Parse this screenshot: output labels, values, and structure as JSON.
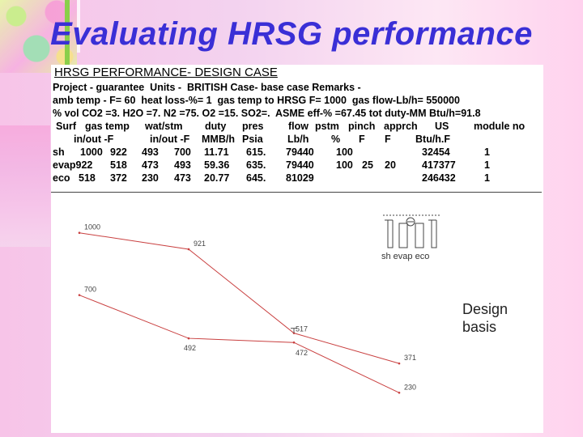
{
  "slide_title": "Evaluating HRSG performance",
  "table": {
    "heading": "HRSG PERFORMANCE- DESIGN CASE",
    "lines": [
      "Project - guarantee  Units -  BRITISH Case- base case Remarks -",
      "amb temp - F= 60  heat loss-%= 1  gas temp to HRSG F= 1000  gas flow-Lb/h= 550000",
      "% vol CO2 =3. H2O =7. N2 =75. O2 =15. SO2=.  ASME eff-% =67.45 tot duty-MM Btu/h=91.8"
    ],
    "header1": [
      "Surf",
      "gas temp",
      "wat/stm",
      "duty",
      "pres",
      "flow",
      "pstm",
      "pinch",
      "apprch",
      "US",
      "module no"
    ],
    "header2": [
      "in/out -F",
      "in/out -F",
      "MMB/h",
      "Psia",
      "Lb/h",
      "%",
      "F",
      "F",
      "Btu/h.F"
    ],
    "rows": [
      [
        "sh",
        "1000",
        "922",
        "493",
        "700",
        "11.71",
        "615.",
        "79440",
        "100",
        "",
        "",
        "32454",
        "1"
      ],
      [
        "evap922",
        "",
        "518",
        "473",
        "493",
        "59.36",
        "635.",
        "79440",
        "100",
        "25",
        "20",
        "417377",
        "1"
      ],
      [
        "eco",
        "518",
        "372",
        "230",
        "473",
        "20.77",
        "645.",
        "81029",
        "",
        "",
        "",
        "246432",
        "1"
      ]
    ]
  },
  "schematic": {
    "label": "sh evap eco"
  },
  "chart_data": {
    "type": "line",
    "title": "",
    "xlabel": "",
    "ylabel": "",
    "series": [
      {
        "points": [
          {
            "x": 0,
            "y": 1000
          },
          {
            "x": 1,
            "y": 921
          },
          {
            "x": 2,
            "y": 517
          },
          {
            "x": 3,
            "y": 371
          }
        ]
      },
      {
        "points": [
          {
            "x": 0,
            "y": 700
          },
          {
            "x": 1,
            "y": 492
          },
          {
            "x": 2,
            "y": 472
          },
          {
            "x": 3,
            "y": 230
          }
        ]
      }
    ],
    "point_labels": [
      "1000",
      "921",
      "700",
      "492",
      "517",
      "472",
      "371",
      "230"
    ]
  },
  "note": {
    "line1": "Design",
    "line2": "basis"
  }
}
